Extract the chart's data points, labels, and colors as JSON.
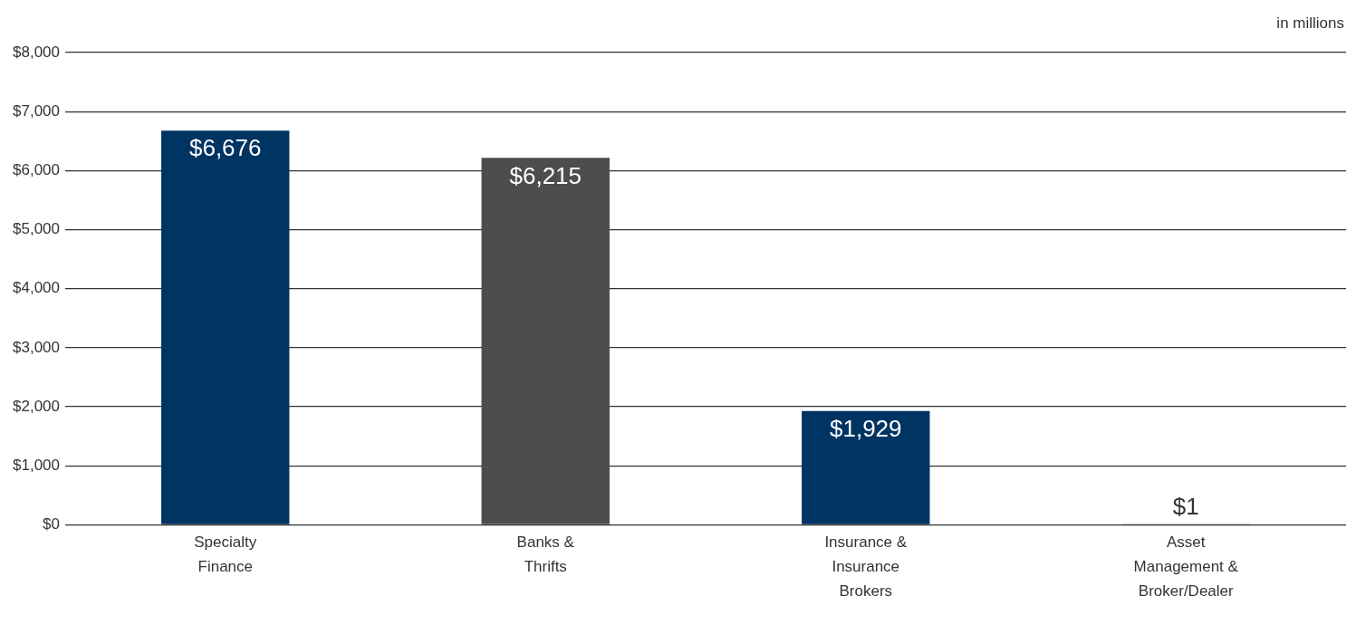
{
  "chart_data": {
    "type": "bar",
    "categories": [
      "Specialty Finance",
      "Banks & Thrifts",
      "Insurance & Insurance Brokers",
      "Asset Management & Broker/Dealer"
    ],
    "values": [
      6676,
      6215,
      1929,
      1
    ],
    "colors": [
      "#003462",
      "#4d4d4f",
      "#003462",
      "#4d4d4f"
    ],
    "value_labels": [
      "$6,676",
      "$6,215",
      "$1,929",
      "$1"
    ],
    "ylim": [
      0,
      8000
    ],
    "yticks": [
      {
        "value": 0,
        "label": "$0"
      },
      {
        "value": 1000,
        "label": "$1,000"
      },
      {
        "value": 2000,
        "label": "$2,000"
      },
      {
        "value": 3000,
        "label": "$3,000"
      },
      {
        "value": 4000,
        "label": "$4,000"
      },
      {
        "value": 5000,
        "label": "$5,000"
      },
      {
        "value": 6000,
        "label": "$6,000"
      },
      {
        "value": 7000,
        "label": "$7,000"
      },
      {
        "value": 8000,
        "label": "$8,000"
      }
    ],
    "grid": "y",
    "legend": false,
    "annotations": [
      "in millions"
    ]
  }
}
